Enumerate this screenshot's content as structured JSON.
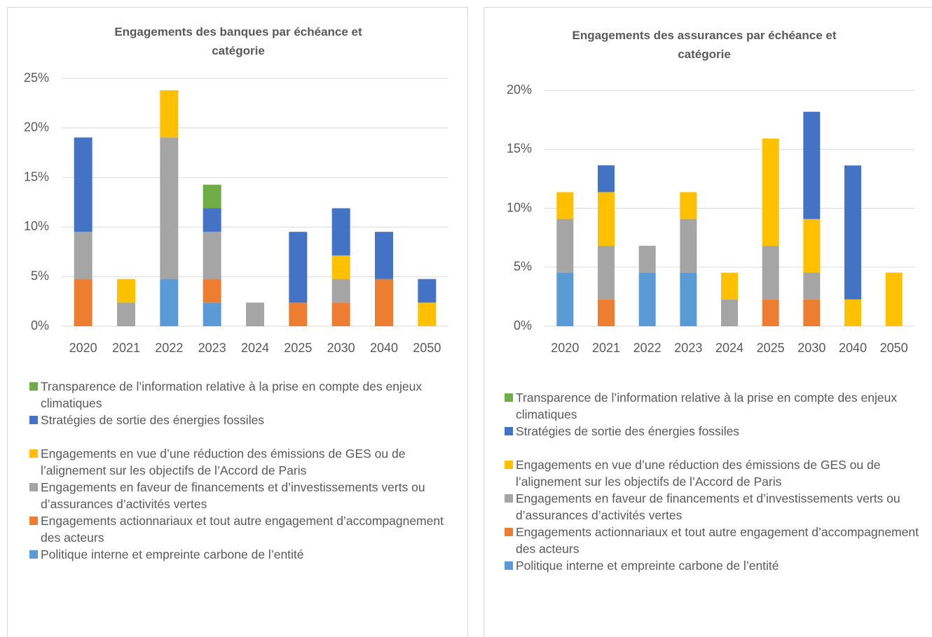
{
  "chart_data": [
    {
      "type": "bar",
      "stacked": true,
      "title": "Engagements des banques par échéance et catégorie",
      "categories": [
        "2020",
        "2021",
        "2022",
        "2023",
        "2024",
        "2025",
        "2030",
        "2040",
        "2050"
      ],
      "ylim": [
        0,
        25
      ],
      "yticks": [
        {
          "value": 0,
          "label": "0%"
        },
        {
          "value": 5,
          "label": "5%"
        },
        {
          "value": 10,
          "label": "10%"
        },
        {
          "value": 15,
          "label": "15%"
        },
        {
          "value": 20,
          "label": "20%"
        },
        {
          "value": 25,
          "label": "25%"
        }
      ],
      "grid": true,
      "series": [
        {
          "name": "Politique interne et empreinte carbone de l’entité",
          "color": "#5b9bd5",
          "values": [
            0,
            0,
            4.76,
            2.38,
            0,
            0,
            0,
            0,
            0
          ]
        },
        {
          "name": "Engagements actionnariaux et tout autre engagement d’accompagnement des acteurs",
          "color": "#ed7d31",
          "values": [
            4.76,
            0,
            0,
            2.38,
            0,
            2.38,
            2.38,
            4.76,
            0
          ]
        },
        {
          "name": "Engagements en faveur de financements et d’investissements verts ou d’assurances d’activités vertes",
          "color": "#a5a5a5",
          "values": [
            4.76,
            2.38,
            14.29,
            4.76,
            2.38,
            0,
            2.38,
            0,
            0
          ]
        },
        {
          "name": "Engagements en vue d’une réduction des émissions de GES ou de l’alignement sur les objectifs de l’Accord de Paris",
          "color": "#ffc000",
          "values": [
            0,
            2.38,
            4.76,
            0,
            0,
            0,
            2.38,
            0,
            2.38
          ]
        },
        {
          "name": "Stratégies de sortie des énergies fossiles",
          "color": "#4472c4",
          "values": [
            9.52,
            0,
            0,
            2.38,
            0,
            7.14,
            4.76,
            4.76,
            2.38
          ]
        },
        {
          "name": "Transparence de l’information relative à la prise en compte des enjeux climatiques",
          "color": "#70ad47",
          "values": [
            0,
            0,
            0,
            2.38,
            0,
            0,
            0,
            0,
            0
          ]
        }
      ]
    },
    {
      "type": "bar",
      "stacked": true,
      "title": "Engagements des assurances par échéance et catégorie",
      "categories": [
        "2020",
        "2021",
        "2022",
        "2023",
        "2024",
        "2025",
        "2030",
        "2040",
        "2050"
      ],
      "ylim": [
        0,
        20
      ],
      "yticks": [
        {
          "value": 0,
          "label": "0%"
        },
        {
          "value": 5,
          "label": "5%"
        },
        {
          "value": 10,
          "label": "10%"
        },
        {
          "value": 15,
          "label": "15%"
        },
        {
          "value": 20,
          "label": "20%"
        }
      ],
      "grid": true,
      "series": [
        {
          "name": "Politique interne et empreinte carbone de l’entité",
          "color": "#5b9bd5",
          "values": [
            4.55,
            0,
            4.55,
            4.55,
            0,
            0,
            0,
            0,
            0
          ]
        },
        {
          "name": "Engagements actionnariaux et tout autre engagement d’accompagnement des acteurs",
          "color": "#ed7d31",
          "values": [
            0,
            2.27,
            0,
            0,
            0,
            2.27,
            2.27,
            0,
            0
          ]
        },
        {
          "name": "Engagements en faveur de financements et d’investissements verts ou d’assurances d’activités vertes",
          "color": "#a5a5a5",
          "values": [
            4.55,
            4.55,
            2.27,
            4.55,
            2.27,
            4.55,
            2.27,
            0,
            0
          ]
        },
        {
          "name": "Engagements en vue d’une réduction des émissions de GES ou de l’alignement sur les objectifs de l’Accord de Paris",
          "color": "#ffc000",
          "values": [
            2.27,
            4.55,
            0,
            2.27,
            2.27,
            9.09,
            4.55,
            2.27,
            4.55
          ]
        },
        {
          "name": "Stratégies de sortie des énergies fossiles",
          "color": "#4472c4",
          "values": [
            0,
            2.27,
            0,
            0,
            0,
            0,
            9.09,
            11.36,
            0
          ]
        },
        {
          "name": "Transparence de l’information relative à la prise en compte des enjeux climatiques",
          "color": "#70ad47",
          "values": [
            0,
            0,
            0,
            0,
            0,
            0,
            0,
            0,
            0
          ]
        }
      ]
    }
  ]
}
